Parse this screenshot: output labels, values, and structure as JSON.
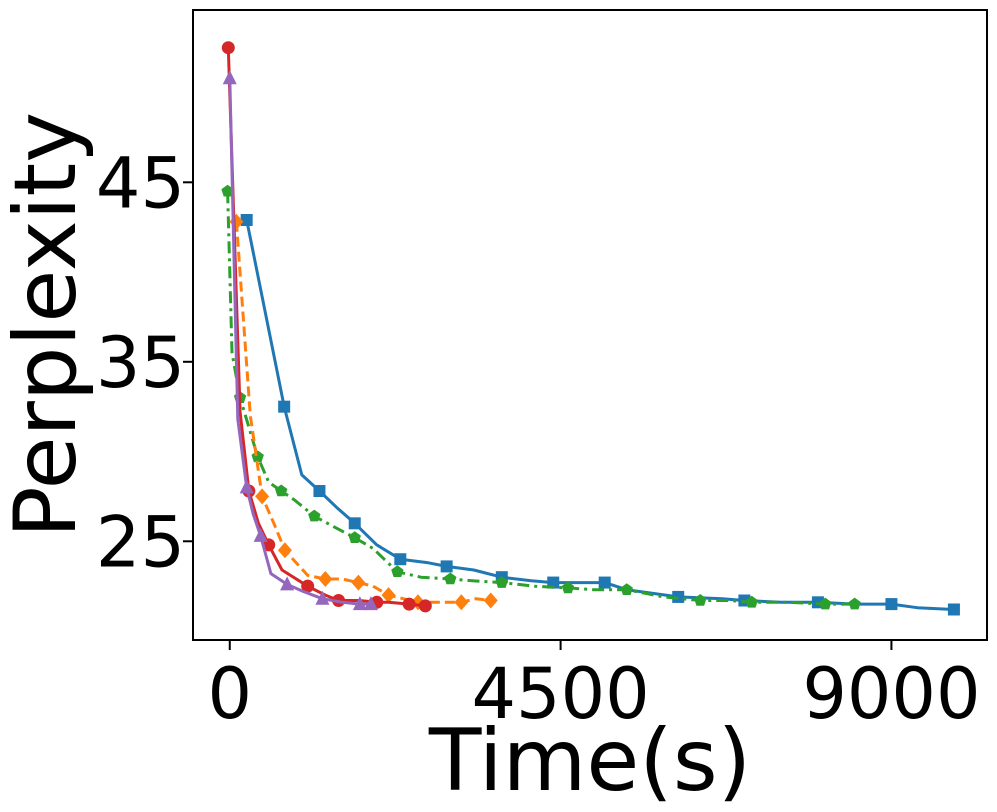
{
  "chart_data": {
    "type": "line",
    "title": "",
    "xlabel": "Time(s)",
    "ylabel": "Perplexity",
    "xlim": [
      -500,
      10300
    ],
    "ylim": [
      19.5,
      54.6
    ],
    "xticks": [
      0,
      4500,
      9000
    ],
    "xtick_labels": [
      "0",
      "4500",
      "9000"
    ],
    "yticks": [
      25,
      35,
      45
    ],
    "ytick_labels": [
      "25",
      "35",
      "45"
    ],
    "grid": false,
    "legend": "none",
    "series": [
      {
        "color": "#1f77b4",
        "marker": "square",
        "dash": "solid",
        "x": [
          230,
          520,
          740,
          980,
          1220,
          1450,
          1700,
          2000,
          2320,
          2700,
          2950,
          3320,
          3700,
          4100,
          4400,
          4700,
          5100,
          5400,
          6100,
          6700,
          7000,
          7500,
          8000,
          8500,
          9000,
          9350,
          9850
        ],
        "y": [
          42.9,
          37,
          32.5,
          28.7,
          27.8,
          26.9,
          26.0,
          24.8,
          24.0,
          23.8,
          23.6,
          23.4,
          23.0,
          22.8,
          22.7,
          22.7,
          22.7,
          22.3,
          21.9,
          21.8,
          21.7,
          21.6,
          21.6,
          21.5,
          21.5,
          21.3,
          21.2
        ]
      },
      {
        "color": "#2ca02c",
        "marker": "pentagon",
        "dash": "dashdot",
        "x": [
          -30,
          30,
          140,
          250,
          380,
          530,
          700,
          880,
          1150,
          1420,
          1700,
          1950,
          2280,
          2600,
          3000,
          3300,
          3700,
          4150,
          4600,
          4950,
          5400,
          5900,
          6400,
          6800,
          7100,
          7600,
          8100,
          8500
        ],
        "y": [
          44.5,
          35.5,
          33,
          31.5,
          29.7,
          28.3,
          27.8,
          27.3,
          26.4,
          25.8,
          25.2,
          24.6,
          23.3,
          23.0,
          22.9,
          22.8,
          22.7,
          22.5,
          22.4,
          22.3,
          22.3,
          21.9,
          21.7,
          21.7,
          21.6,
          21.6,
          21.5,
          21.5
        ]
      },
      {
        "color": "#ff7f0e",
        "marker": "diamond",
        "dash": "dashed",
        "x": [
          90,
          280,
          440,
          610,
          750,
          1060,
          1300,
          1530,
          1750,
          1950,
          2160,
          2360,
          2560,
          2880,
          3150,
          3350,
          3550
        ],
        "y": [
          42.8,
          32,
          27.5,
          25.9,
          24.5,
          23.1,
          22.9,
          22.9,
          22.7,
          22.5,
          22.0,
          21.8,
          21.6,
          21.6,
          21.6,
          21.8,
          21.7
        ]
      },
      {
        "color": "#d62728",
        "marker": "circle",
        "dash": "solid",
        "x": [
          -20,
          140,
          260,
          390,
          530,
          710,
          1060,
          1300,
          1480,
          1760,
          2000,
          2160,
          2440,
          2660
        ],
        "y": [
          52.5,
          32.2,
          27.8,
          26,
          24.8,
          23.4,
          22.5,
          22.0,
          21.7,
          21.7,
          21.6,
          21.6,
          21.5,
          21.4
        ]
      },
      {
        "color": "#9467bd",
        "marker": "triangle",
        "dash": "solid",
        "x": [
          0,
          110,
          230,
          320,
          420,
          560,
          780,
          1000,
          1260,
          1530,
          1770,
          1920
        ],
        "y": [
          50.8,
          31.8,
          28,
          26.5,
          25.3,
          23.2,
          22.6,
          22.2,
          21.8,
          21.6,
          21.5,
          21.5
        ]
      }
    ]
  }
}
